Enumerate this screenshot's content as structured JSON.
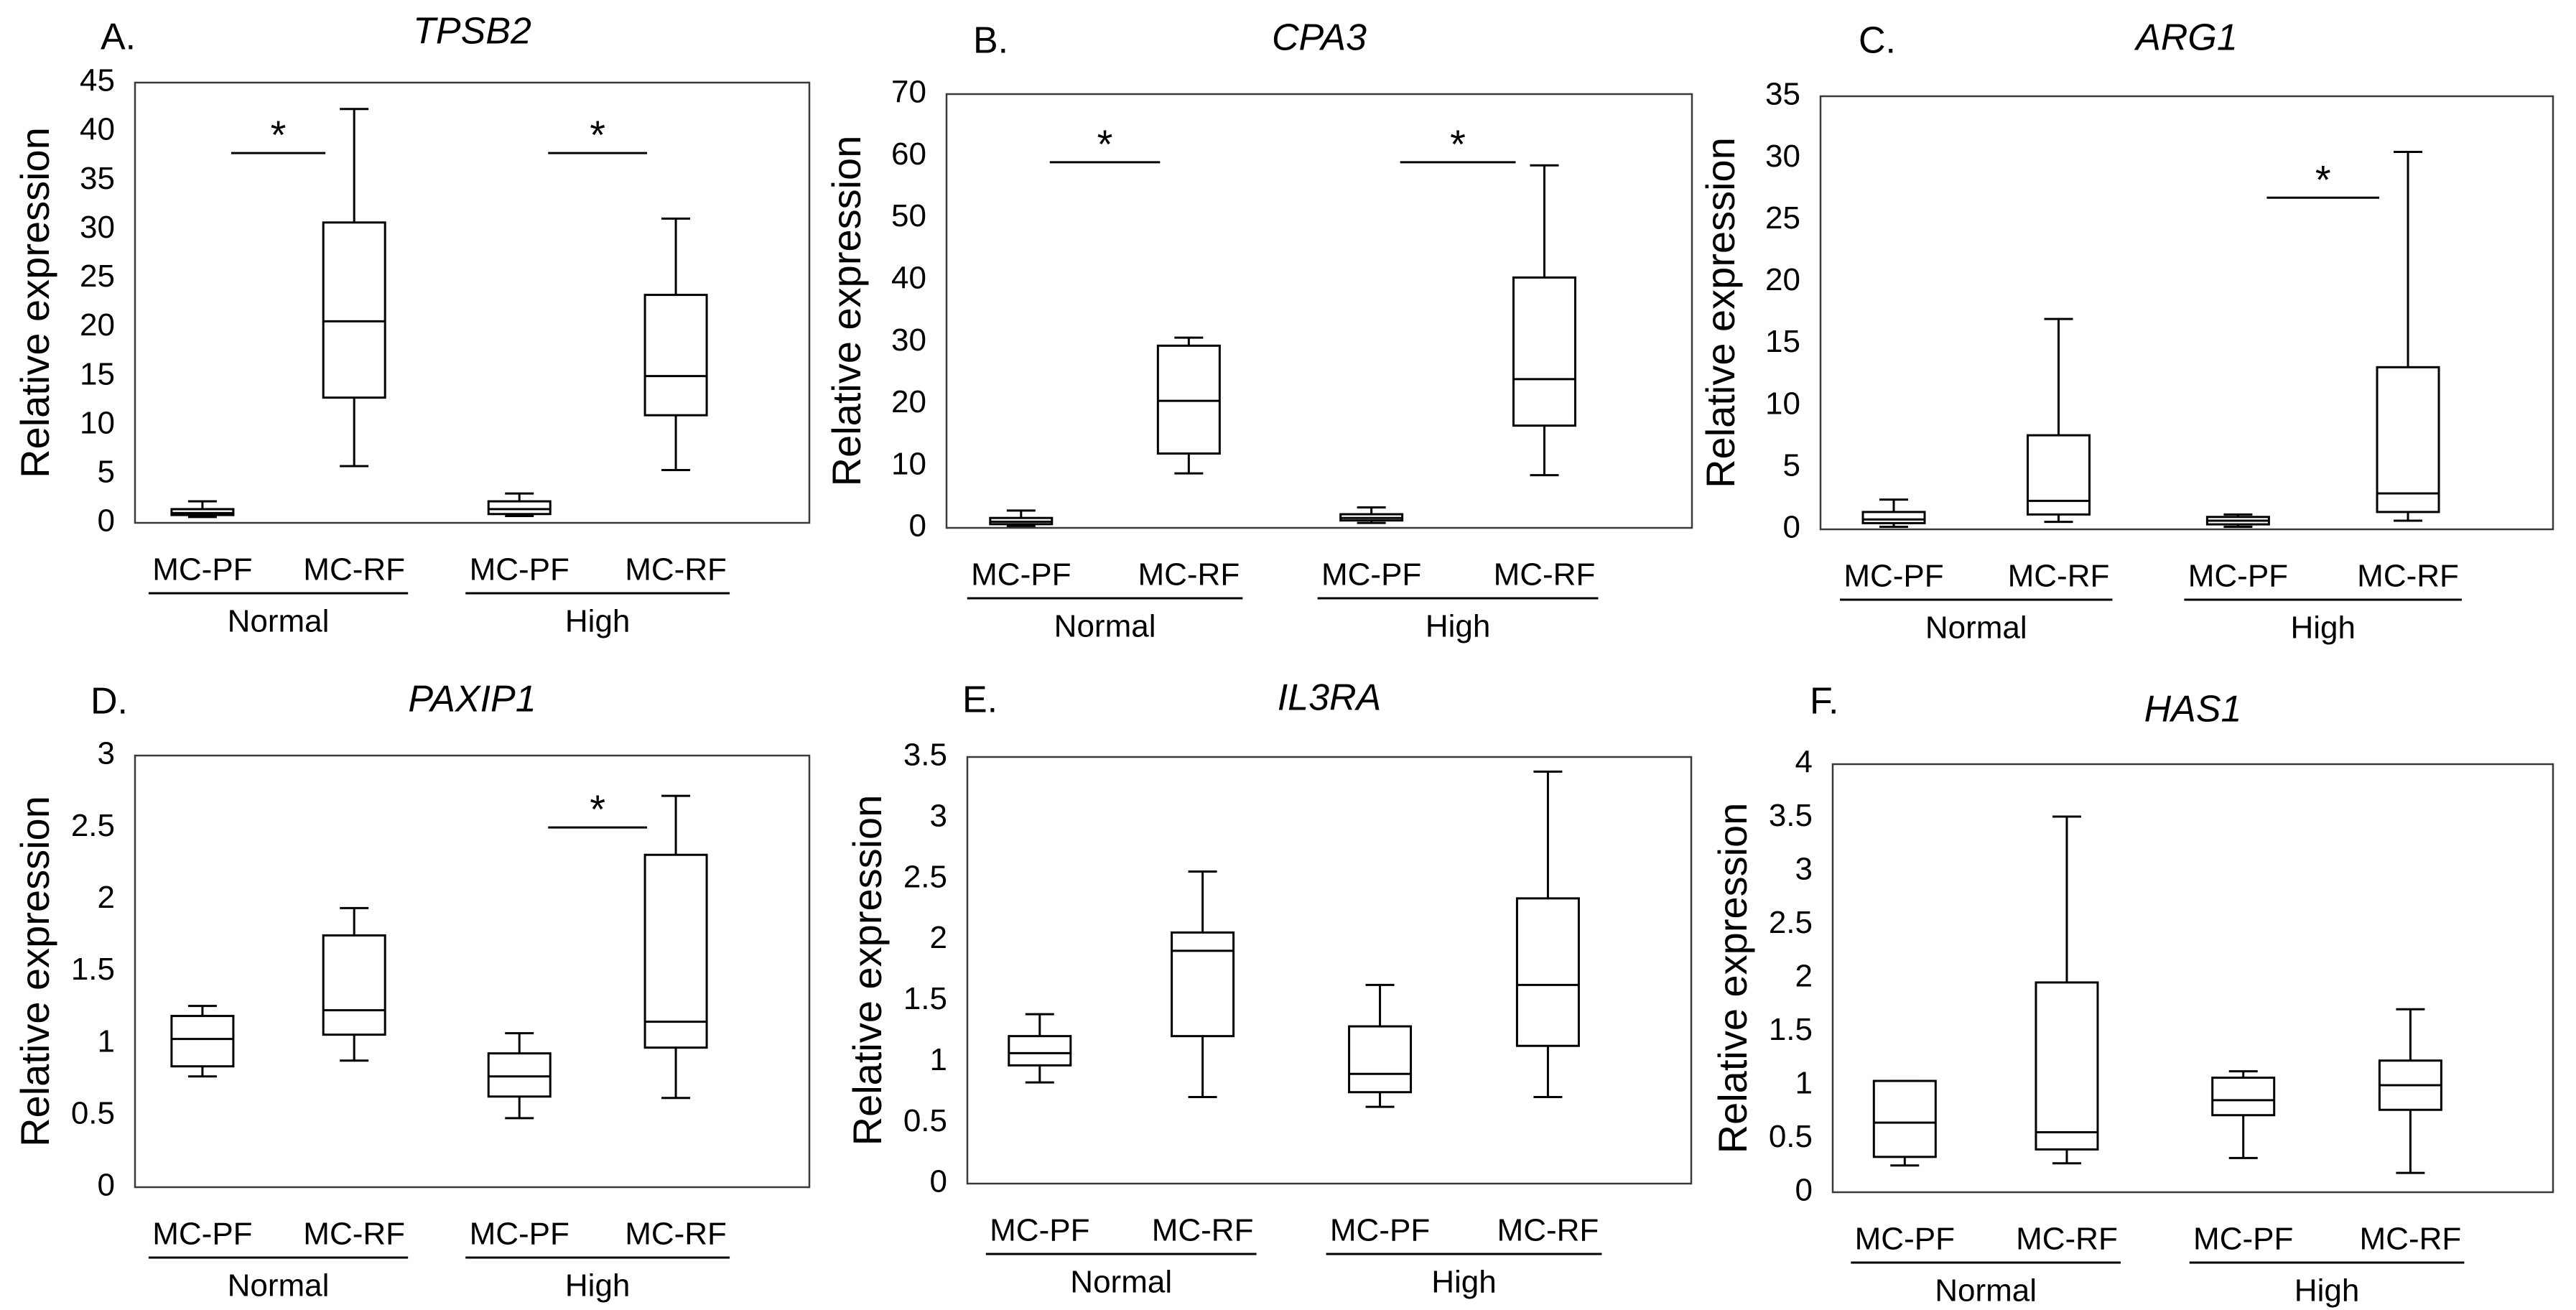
{
  "figure": {
    "y_axis_label": "Relative expression",
    "category_labels": [
      "MC-PF",
      "MC-RF",
      "MC-PF",
      "MC-RF"
    ],
    "group_labels": [
      "Normal",
      "High"
    ],
    "significance_marker": "*",
    "line_color": "#000000",
    "frame_color": "#3a3a3a"
  },
  "chart_data": [
    {
      "type": "box",
      "panel_label": "A.",
      "title": "TPSB2",
      "ylim": [
        0,
        45
      ],
      "yticks": [
        0,
        5,
        10,
        15,
        20,
        25,
        30,
        35,
        40,
        45
      ],
      "ytick_labels": [
        "0",
        "5",
        "10",
        "15",
        "20",
        "25",
        "30",
        "35",
        "40",
        "45"
      ],
      "boxes": [
        {
          "category": "MC-PF",
          "group": "Normal",
          "min": 0.6,
          "q1": 0.8,
          "median": 1.0,
          "q3": 1.4,
          "max": 2.2
        },
        {
          "category": "MC-RF",
          "group": "Normal",
          "min": 5.8,
          "q1": 12.8,
          "median": 20.6,
          "q3": 30.7,
          "max": 42.3
        },
        {
          "category": "MC-PF",
          "group": "High",
          "min": 0.7,
          "q1": 0.9,
          "median": 1.4,
          "q3": 2.2,
          "max": 3.0
        },
        {
          "category": "MC-RF",
          "group": "High",
          "min": 5.4,
          "q1": 11.0,
          "median": 15.0,
          "q3": 23.3,
          "max": 31.1
        }
      ],
      "significance": [
        {
          "from": 0,
          "to": 1,
          "y": 37.8,
          "label": "*"
        },
        {
          "from": 2,
          "to": 3,
          "y": 37.8,
          "label": "*"
        }
      ]
    },
    {
      "type": "box",
      "panel_label": "B.",
      "title": "CPA3",
      "ylim": [
        0,
        70
      ],
      "yticks": [
        0,
        10,
        20,
        30,
        40,
        50,
        60,
        70
      ],
      "ytick_labels": [
        "0",
        "10",
        "20",
        "30",
        "40",
        "50",
        "60",
        "70"
      ],
      "boxes": [
        {
          "category": "MC-PF",
          "group": "Normal",
          "min": 0.3,
          "q1": 0.6,
          "median": 1.0,
          "q3": 1.6,
          "max": 2.8
        },
        {
          "category": "MC-RF",
          "group": "Normal",
          "min": 8.8,
          "q1": 12.0,
          "median": 20.5,
          "q3": 29.4,
          "max": 30.7
        },
        {
          "category": "MC-PF",
          "group": "High",
          "min": 0.8,
          "q1": 1.2,
          "median": 1.6,
          "q3": 2.2,
          "max": 3.3
        },
        {
          "category": "MC-RF",
          "group": "High",
          "min": 8.5,
          "q1": 16.5,
          "median": 24.0,
          "q3": 40.4,
          "max": 58.5
        }
      ],
      "significance": [
        {
          "from": 0,
          "to": 1,
          "y": 59.0,
          "label": "*"
        },
        {
          "from": 2,
          "to": 3,
          "y": 59.0,
          "label": "*"
        }
      ]
    },
    {
      "type": "box",
      "panel_label": "C.",
      "title": "ARG1",
      "ylim": [
        0,
        35
      ],
      "yticks": [
        0,
        5,
        10,
        15,
        20,
        25,
        30,
        35
      ],
      "ytick_labels": [
        "0",
        "5",
        "10",
        "15",
        "20",
        "25",
        "30",
        "35"
      ],
      "boxes": [
        {
          "category": "MC-PF",
          "group": "Normal",
          "min": 0.2,
          "q1": 0.5,
          "median": 0.8,
          "q3": 1.4,
          "max": 2.4
        },
        {
          "category": "MC-RF",
          "group": "Normal",
          "min": 0.6,
          "q1": 1.2,
          "median": 2.3,
          "q3": 7.6,
          "max": 17.0
        },
        {
          "category": "MC-PF",
          "group": "High",
          "min": 0.2,
          "q1": 0.4,
          "median": 0.7,
          "q3": 1.0,
          "max": 1.2
        },
        {
          "category": "MC-RF",
          "group": "High",
          "min": 0.7,
          "q1": 1.4,
          "median": 2.9,
          "q3": 13.1,
          "max": 30.5
        }
      ],
      "significance": [
        {
          "from": 2,
          "to": 3,
          "y": 26.8,
          "label": "*"
        }
      ]
    },
    {
      "type": "box",
      "panel_label": "D.",
      "title": "PAXIP1",
      "ylim": [
        0,
        3
      ],
      "yticks": [
        0,
        0.5,
        1,
        1.5,
        2,
        2.5,
        3
      ],
      "ytick_labels": [
        "0",
        "0.5",
        "1",
        "1.5",
        "2",
        "2.5",
        "3"
      ],
      "boxes": [
        {
          "category": "MC-PF",
          "group": "Normal",
          "min": 0.77,
          "q1": 0.84,
          "median": 1.03,
          "q3": 1.19,
          "max": 1.26
        },
        {
          "category": "MC-RF",
          "group": "Normal",
          "min": 0.88,
          "q1": 1.06,
          "median": 1.23,
          "q3": 1.75,
          "max": 1.94
        },
        {
          "category": "MC-PF",
          "group": "High",
          "min": 0.48,
          "q1": 0.63,
          "median": 0.77,
          "q3": 0.93,
          "max": 1.07
        },
        {
          "category": "MC-RF",
          "group": "High",
          "min": 0.62,
          "q1": 0.97,
          "median": 1.15,
          "q3": 2.31,
          "max": 2.72
        }
      ],
      "significance": [
        {
          "from": 2,
          "to": 3,
          "y": 2.5,
          "label": "*"
        }
      ]
    },
    {
      "type": "box",
      "panel_label": "E.",
      "title": "IL3RA",
      "ylim": [
        0,
        3.5
      ],
      "yticks": [
        0,
        0.5,
        1,
        1.5,
        2,
        2.5,
        3,
        3.5
      ],
      "ytick_labels": [
        "0",
        "0.5",
        "1",
        "1.5",
        "2",
        "2.5",
        "3",
        "3.5"
      ],
      "boxes": [
        {
          "category": "MC-PF",
          "group": "Normal",
          "min": 0.83,
          "q1": 0.97,
          "median": 1.07,
          "q3": 1.21,
          "max": 1.39
        },
        {
          "category": "MC-RF",
          "group": "Normal",
          "min": 0.71,
          "q1": 1.21,
          "median": 1.91,
          "q3": 2.06,
          "max": 2.56
        },
        {
          "category": "MC-PF",
          "group": "High",
          "min": 0.63,
          "q1": 0.75,
          "median": 0.9,
          "q3": 1.29,
          "max": 1.63
        },
        {
          "category": "MC-RF",
          "group": "High",
          "min": 0.71,
          "q1": 1.13,
          "median": 1.63,
          "q3": 2.34,
          "max": 3.38
        }
      ],
      "significance": []
    },
    {
      "type": "box",
      "panel_label": "F.",
      "title": "HAS1",
      "ylim": [
        0,
        4
      ],
      "yticks": [
        0,
        0.5,
        1,
        1.5,
        2,
        2.5,
        3,
        3.5,
        4
      ],
      "ytick_labels": [
        "0",
        "0.5",
        "1",
        "1.5",
        "2",
        "2.5",
        "3",
        "3.5",
        "4"
      ],
      "boxes": [
        {
          "category": "MC-PF",
          "group": "Normal",
          "min": 0.25,
          "q1": 0.33,
          "median": 0.65,
          "q3": 1.04,
          "max": 1.04
        },
        {
          "category": "MC-RF",
          "group": "Normal",
          "min": 0.27,
          "q1": 0.4,
          "median": 0.56,
          "q3": 1.96,
          "max": 3.51
        },
        {
          "category": "MC-PF",
          "group": "High",
          "min": 0.32,
          "q1": 0.72,
          "median": 0.86,
          "q3": 1.07,
          "max": 1.13
        },
        {
          "category": "MC-RF",
          "group": "High",
          "min": 0.18,
          "q1": 0.77,
          "median": 1.0,
          "q3": 1.23,
          "max": 1.71
        }
      ],
      "significance": []
    }
  ]
}
